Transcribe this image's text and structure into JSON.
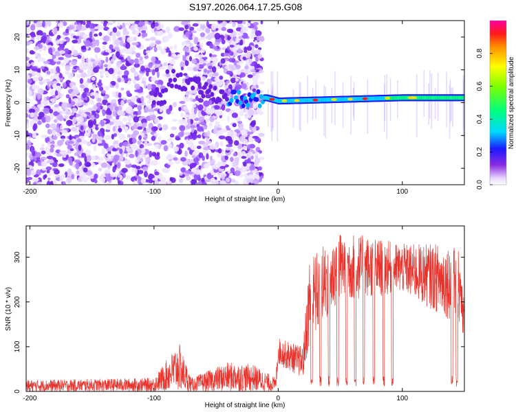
{
  "title": "S197.2026.064.17.25.G08",
  "chart_data": [
    {
      "type": "heatmap",
      "xlabel": "Height of straight line (km)",
      "ylabel": "Frequency (Hz)",
      "xlim": [
        -203,
        150
      ],
      "ylim": [
        -25,
        25
      ],
      "xticks": [
        -200,
        -100,
        0,
        100
      ],
      "yticks": [
        -20,
        -10,
        0,
        10,
        20
      ],
      "description_of_signal": {
        "noise_region_x": [
          -203,
          -13
        ],
        "signal_line_hz_at_heights": [
          {
            "x": -90,
            "y": 8
          },
          {
            "x": -60,
            "y": 4
          },
          {
            "x": -35,
            "y": 1
          },
          {
            "x": -10,
            "y": 1.5
          },
          {
            "x": 0,
            "y": 0.5
          },
          {
            "x": 50,
            "y": 1
          },
          {
            "x": 100,
            "y": 1.5
          },
          {
            "x": 150,
            "y": 1.5
          }
        ]
      },
      "colorbar": {
        "label": "Normalized spectral amplitude",
        "ticks": [
          0.0,
          0.2,
          0.4,
          0.6,
          0.8
        ],
        "range": [
          0,
          1
        ]
      }
    },
    {
      "type": "line",
      "xlabel": "Height of straight line (km)",
      "ylabel": "SNR (10 * v/v)",
      "xlim": [
        -203,
        150
      ],
      "ylim": [
        0,
        370
      ],
      "xticks": [
        -200,
        -100,
        0,
        100
      ],
      "yticks": [
        0,
        100,
        200,
        300
      ],
      "series": [
        {
          "name": "SNR",
          "color": "#e8332c",
          "envelope_points": [
            {
              "x": -203,
              "base": 0,
              "top": 25
            },
            {
              "x": -100,
              "base": 0,
              "top": 30
            },
            {
              "x": -80,
              "base": 0,
              "top": 110
            },
            {
              "x": -70,
              "base": 0,
              "top": 30
            },
            {
              "x": -40,
              "base": 0,
              "top": 65
            },
            {
              "x": -20,
              "base": 0,
              "top": 60
            },
            {
              "x": -2,
              "base": 0,
              "top": 30
            },
            {
              "x": 0,
              "base": 60,
              "top": 120
            },
            {
              "x": 20,
              "base": 30,
              "top": 100
            },
            {
              "x": 25,
              "base": 100,
              "top": 300
            },
            {
              "x": 50,
              "base": 200,
              "top": 360
            },
            {
              "x": 100,
              "base": 220,
              "top": 330
            },
            {
              "x": 145,
              "base": 150,
              "top": 330
            },
            {
              "x": 150,
              "base": 100,
              "top": 200
            }
          ],
          "dropouts_x": [
            27,
            34,
            41,
            48,
            55,
            62,
            69,
            77,
            85,
            92,
            140,
            144
          ]
        }
      ]
    }
  ]
}
